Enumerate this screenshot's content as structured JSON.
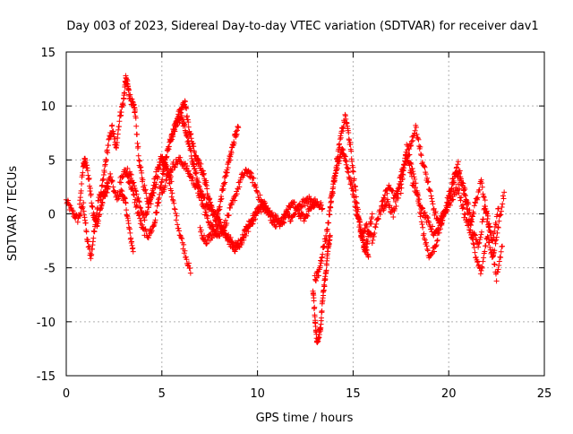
{
  "chart_data": {
    "type": "scatter",
    "title": "Day 003 of 2023, Sidereal Day-to-day VTEC variation (SDTVAR) for receiver dav1",
    "xlabel": "GPS time / hours",
    "ylabel": "SDTVAR / TECUs",
    "xlim": [
      0,
      25
    ],
    "ylim": [
      -15,
      15
    ],
    "xticks": [
      0,
      5,
      10,
      15,
      20,
      25
    ],
    "yticks": [
      -15,
      -10,
      -5,
      0,
      5,
      10,
      15
    ],
    "xtick_labels": [
      "0",
      "5",
      "10",
      "15",
      "20",
      "25"
    ],
    "ytick_labels": [
      "-15",
      "-10",
      "-5",
      "0",
      "5",
      "10",
      "15"
    ],
    "grid": true,
    "marker": "plus",
    "series": [
      {
        "name": "dav1",
        "color": "#ff0000",
        "tracks": [
          {
            "x": [
              0.0,
              0.3,
              0.6,
              0.9,
              1.1,
              1.3,
              1.5,
              1.7,
              2.0,
              2.3,
              2.6,
              2.9,
              3.1,
              3.3,
              3.5
            ],
            "y": [
              1.2,
              0.2,
              -0.5,
              0.8,
              -2.5,
              -4.0,
              -1.0,
              1.5,
              2.0,
              3.5,
              1.5,
              2.0,
              1.0,
              -1.5,
              -3.5
            ]
          },
          {
            "x": [
              0.7,
              0.9,
              1.0,
              1.2,
              1.4,
              1.6,
              1.8,
              2.0,
              2.2
            ],
            "y": [
              1.0,
              4.5,
              5.2,
              3.0,
              0.0,
              -1.0,
              0.5,
              1.8,
              2.5
            ]
          },
          {
            "x": [
              1.8,
              2.0,
              2.2,
              2.4,
              2.6,
              2.8,
              3.0,
              3.1,
              3.2,
              3.3,
              3.5,
              3.6,
              3.8,
              4.0,
              4.3,
              4.6,
              4.9,
              5.2,
              5.5
            ],
            "y": [
              1.5,
              4.0,
              6.5,
              8.0,
              6.0,
              9.0,
              10.5,
              12.5,
              12.0,
              11.0,
              10.0,
              9.5,
              5.0,
              3.0,
              1.0,
              3.0,
              5.0,
              4.5,
              3.0
            ]
          },
          {
            "x": [
              3.2,
              3.5,
              3.8,
              4.1,
              4.4,
              4.7,
              5.0,
              5.3,
              5.6,
              5.9,
              6.2,
              6.5
            ],
            "y": [
              4.0,
              3.0,
              1.0,
              -0.5,
              1.0,
              3.0,
              5.5,
              4.0,
              1.0,
              -1.5,
              -3.5,
              -5.5
            ]
          },
          {
            "x": [
              2.8,
              3.1,
              3.4,
              3.7,
              4.0,
              4.3,
              4.6,
              4.8,
              5.0,
              5.2,
              5.4,
              5.6,
              5.8,
              6.0,
              6.2,
              6.4,
              6.6,
              6.8,
              7.0,
              7.3,
              7.6,
              8.0,
              8.4,
              8.8,
              9.2,
              9.6,
              10.0,
              10.4
            ],
            "y": [
              3.0,
              4.0,
              2.5,
              0.5,
              -1.5,
              -2.0,
              -1.0,
              1.0,
              3.0,
              5.0,
              6.5,
              7.5,
              8.5,
              9.0,
              8.0,
              6.5,
              5.0,
              3.5,
              2.0,
              1.0,
              0.5,
              -0.5,
              -2.0,
              -3.0,
              -2.5,
              -1.0,
              0.0,
              1.0
            ]
          },
          {
            "x": [
              5.0,
              5.3,
              5.6,
              5.9,
              6.2,
              6.5,
              6.8,
              7.1,
              7.4,
              7.7,
              8.0,
              8.3,
              8.6,
              8.9,
              9.2,
              9.5,
              9.8,
              10.1,
              10.4,
              10.7,
              11.0,
              11.3,
              11.6,
              11.9,
              12.2,
              12.5,
              12.8,
              13.1,
              13.4
            ],
            "y": [
              2.0,
              3.5,
              4.5,
              5.0,
              4.5,
              3.5,
              2.5,
              1.0,
              -0.5,
              -1.5,
              -2.0,
              -1.0,
              0.5,
              2.0,
              3.5,
              4.0,
              3.0,
              1.5,
              0.5,
              0.0,
              -0.5,
              -1.0,
              0.5,
              1.0,
              0.0,
              -0.5,
              0.8,
              1.2,
              0.5
            ]
          },
          {
            "x": [
              5.5,
              5.8,
              6.0,
              6.2,
              6.4,
              6.6,
              6.8,
              7.0,
              7.2,
              7.4,
              7.6,
              7.8,
              8.0,
              8.2,
              8.4,
              8.6,
              8.8,
              9.0
            ],
            "y": [
              7.0,
              9.0,
              9.5,
              10.5,
              8.0,
              6.5,
              5.0,
              4.5,
              3.5,
              2.0,
              0.5,
              -0.5,
              0.5,
              2.5,
              4.0,
              5.5,
              7.0,
              8.0
            ]
          },
          {
            "x": [
              7.0,
              7.3,
              7.6,
              7.9,
              8.2,
              8.5,
              8.8,
              9.1,
              9.4,
              9.7,
              10.0,
              10.3,
              10.6,
              10.9,
              11.2,
              11.5,
              11.8,
              12.1,
              12.4,
              12.7,
              13.0
            ],
            "y": [
              -1.5,
              -2.5,
              -2.0,
              -1.0,
              -1.5,
              -2.5,
              -3.2,
              -2.8,
              -1.5,
              -0.5,
              0.5,
              1.0,
              0.0,
              -1.0,
              -0.8,
              0.0,
              -0.5,
              0.5,
              1.0,
              1.3,
              0.8
            ]
          },
          {
            "x": [
              12.9,
              13.0,
              13.1,
              13.2,
              13.3,
              13.4,
              13.5,
              13.6,
              13.7,
              13.8
            ],
            "y": [
              -7.0,
              -9.5,
              -12.0,
              -11.5,
              -10.5,
              -8.0,
              -6.5,
              -5.0,
              -3.0,
              -2.0
            ]
          },
          {
            "x": [
              13.0,
              13.2,
              13.4,
              13.6,
              13.8,
              14.0,
              14.2,
              14.4,
              14.6,
              14.8,
              15.0,
              15.2,
              15.4,
              15.6,
              15.8,
              16.0
            ],
            "y": [
              -6.0,
              -5.5,
              -3.5,
              -2.0,
              0.5,
              3.0,
              5.5,
              7.5,
              9.0,
              7.0,
              4.0,
              1.0,
              -1.5,
              -3.5,
              -2.0,
              0.0
            ]
          },
          {
            "x": [
              13.8,
              14.0,
              14.2,
              14.4,
              14.6,
              14.8,
              15.0,
              15.2,
              15.4,
              15.6,
              15.8
            ],
            "y": [
              1.0,
              3.0,
              4.5,
              6.0,
              5.0,
              3.5,
              2.0,
              0.0,
              -1.5,
              -3.0,
              -4.0
            ]
          },
          {
            "x": [
              15.4,
              15.7,
              16.0,
              16.3,
              16.6,
              16.9,
              17.2,
              17.5,
              17.8,
              18.1,
              18.4,
              18.7,
              19.0,
              19.3,
              19.6,
              19.9,
              20.2,
              20.5,
              20.8,
              21.1,
              21.4,
              21.7,
              22.0,
              22.3,
              22.6,
              22.9
            ],
            "y": [
              -2.0,
              -1.0,
              -2.5,
              -0.5,
              1.5,
              2.5,
              1.5,
              3.5,
              5.5,
              3.0,
              1.5,
              -2.0,
              -4.0,
              -3.0,
              -1.0,
              1.0,
              3.0,
              4.5,
              2.0,
              -1.0,
              -4.0,
              -5.5,
              -2.0,
              -4.0,
              -1.0,
              2.0
            ]
          },
          {
            "x": [
              16.5,
              16.8,
              17.1,
              17.4,
              17.7,
              18.0,
              18.3,
              18.6,
              18.9,
              19.2,
              19.5,
              19.8,
              20.1,
              20.4,
              20.7,
              21.0,
              21.3,
              21.6,
              21.9,
              22.2,
              22.5,
              22.8
            ],
            "y": [
              0.5,
              1.0,
              0.0,
              2.0,
              4.5,
              6.5,
              8.0,
              5.0,
              3.0,
              0.5,
              -1.0,
              0.0,
              2.0,
              4.0,
              3.0,
              1.0,
              -2.0,
              -3.0,
              1.0,
              -2.0,
              -6.0,
              -3.0
            ]
          },
          {
            "x": [
              17.5,
              17.8,
              18.1,
              18.4,
              18.7,
              19.0,
              19.3,
              19.6,
              19.9,
              20.2,
              20.5,
              20.8,
              21.1,
              21.4,
              21.7,
              22.0,
              22.3,
              22.6
            ],
            "y": [
              2.0,
              6.5,
              4.0,
              1.5,
              0.0,
              -1.0,
              -2.0,
              -0.5,
              0.5,
              1.5,
              2.5,
              0.0,
              -1.5,
              1.0,
              3.0,
              -0.5,
              -2.5,
              0.5
            ]
          }
        ]
      }
    ]
  }
}
